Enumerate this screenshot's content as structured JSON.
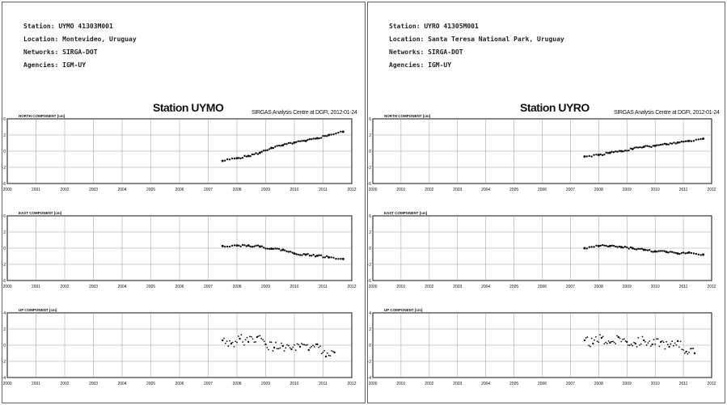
{
  "colors": {
    "grid": "#999999",
    "frame": "#111111",
    "points": "#111111"
  },
  "panels": [
    {
      "meta": [
        "Station: UYMO 41303M001",
        "Location: Montevideo, Uruguay",
        "Networks: SIRGA-DOT",
        "Agencies: IGM-UY"
      ],
      "station_title": "Station UYMO",
      "analysis": "SIRGAS Analysis Centre at DGFI, 2012-01-24"
    },
    {
      "meta": [
        "Station: UYRO 41305M001",
        "Location: Santa Teresa National Park, Uruguay",
        "Networks: SIRGA-DOT",
        "Agencies: IGM-UY"
      ],
      "station_title": "Station UYRO",
      "analysis": "SIRGAS Analysis Centre at DGFI, 2012-01-24"
    }
  ],
  "chart_data": [
    {
      "type": "scatter",
      "station": "UYMO",
      "component": "NORTH COMPONENT [cm]",
      "x_ticks": [
        "2000",
        "2001",
        "2002",
        "2003",
        "2004",
        "2005",
        "2006",
        "2007",
        "2008",
        "2009",
        "2010",
        "2011",
        "2012"
      ],
      "xlim": [
        2000,
        2012
      ],
      "ylim": [
        -6,
        6
      ],
      "yticks": [
        "6",
        "2",
        "0",
        "-2",
        "-6"
      ],
      "grid": true,
      "x": [
        2007.5,
        2008.0,
        2008.4,
        2008.8,
        2009.2,
        2009.6,
        2010.0,
        2010.4,
        2010.8,
        2011.2,
        2011.7
      ],
      "y": [
        -1.8,
        -1.3,
        -0.9,
        -0.3,
        0.6,
        1.1,
        1.6,
        1.9,
        2.4,
        3.0,
        3.6
      ]
    },
    {
      "type": "scatter",
      "station": "UYMO",
      "component": "EAST COMPONENT [cm]",
      "x_ticks": [
        "2000",
        "2001",
        "2002",
        "2003",
        "2004",
        "2005",
        "2006",
        "2007",
        "2008",
        "2009",
        "2010",
        "2011",
        "2012"
      ],
      "xlim": [
        2000,
        2012
      ],
      "ylim": [
        -6,
        6
      ],
      "yticks": [
        "6",
        "2",
        "0",
        "-2",
        "-6"
      ],
      "grid": true,
      "x": [
        2007.5,
        2008.0,
        2008.4,
        2008.8,
        2009.2,
        2009.6,
        2010.0,
        2010.4,
        2010.8,
        2011.2,
        2011.7
      ],
      "y": [
        0.4,
        0.5,
        0.5,
        0.3,
        -0.1,
        -0.3,
        -1.0,
        -1.2,
        -1.4,
        -1.7,
        -2.0
      ]
    },
    {
      "type": "scatter",
      "station": "UYMO",
      "component": "UP COMPONENT [cm]",
      "x_ticks": [
        "2000",
        "2001",
        "2002",
        "2003",
        "2004",
        "2005",
        "2006",
        "2007",
        "2008",
        "2009",
        "2010",
        "2011",
        "2012"
      ],
      "xlim": [
        2000,
        2012
      ],
      "ylim": [
        -4,
        4
      ],
      "yticks": [
        "4",
        "2",
        "0",
        "-2",
        "-4"
      ],
      "grid": true,
      "x": [
        2007.5,
        2007.8,
        2008.1,
        2008.4,
        2008.7,
        2009.0,
        2009.3,
        2009.6,
        2009.9,
        2010.2,
        2010.5,
        2010.8,
        2011.1,
        2011.4
      ],
      "y": [
        0.6,
        0.2,
        0.8,
        0.4,
        1.0,
        0.1,
        -0.3,
        -0.1,
        -0.5,
        -0.2,
        -0.6,
        0.1,
        -1.4,
        -0.9
      ]
    },
    {
      "type": "scatter",
      "station": "UYRO",
      "component": "NORTH COMPONENT [cm]",
      "x_ticks": [
        "2000",
        "2001",
        "2002",
        "2003",
        "2004",
        "2005",
        "2006",
        "2007",
        "2008",
        "2009",
        "2010",
        "2011",
        "2012"
      ],
      "xlim": [
        2000,
        2012
      ],
      "ylim": [
        -6,
        6
      ],
      "yticks": [
        "6",
        "2",
        "0",
        "-2",
        "-6"
      ],
      "grid": true,
      "x": [
        2007.5,
        2008.0,
        2008.4,
        2008.8,
        2009.2,
        2009.6,
        2010.0,
        2010.4,
        2010.8,
        2011.2,
        2011.7
      ],
      "y": [
        -1.0,
        -0.7,
        -0.3,
        0.0,
        0.4,
        0.8,
        1.0,
        1.3,
        1.6,
        1.9,
        2.3
      ]
    },
    {
      "type": "scatter",
      "station": "UYRO",
      "component": "EAST COMPONENT [cm]",
      "x_ticks": [
        "2000",
        "2001",
        "2002",
        "2003",
        "2004",
        "2005",
        "2006",
        "2007",
        "2008",
        "2009",
        "2010",
        "2011",
        "2012"
      ],
      "xlim": [
        2000,
        2012
      ],
      "ylim": [
        -6,
        6
      ],
      "yticks": [
        "6",
        "2",
        "0",
        "-2",
        "-6"
      ],
      "grid": true,
      "x": [
        2007.5,
        2008.0,
        2008.4,
        2008.8,
        2009.2,
        2009.6,
        2010.0,
        2010.4,
        2010.8,
        2011.2,
        2011.7
      ],
      "y": [
        0.0,
        0.4,
        0.4,
        0.2,
        0.0,
        -0.3,
        -0.6,
        -0.7,
        -1.0,
        -0.8,
        -1.2
      ]
    },
    {
      "type": "scatter",
      "station": "UYRO",
      "component": "UP COMPONENT [cm]",
      "x_ticks": [
        "2000",
        "2001",
        "2002",
        "2003",
        "2004",
        "2005",
        "2006",
        "2007",
        "2008",
        "2009",
        "2010",
        "2011",
        "2012"
      ],
      "xlim": [
        2000,
        2012
      ],
      "ylim": [
        -4,
        4
      ],
      "yticks": [
        "4",
        "2",
        "0",
        "-2",
        "-4"
      ],
      "grid": true,
      "x": [
        2007.5,
        2007.8,
        2008.1,
        2008.4,
        2008.7,
        2009.0,
        2009.3,
        2009.6,
        2009.9,
        2010.2,
        2010.5,
        2010.8,
        2011.1,
        2011.4
      ],
      "y": [
        0.6,
        0.2,
        0.9,
        0.3,
        1.0,
        0.4,
        0.2,
        0.6,
        0.1,
        0.4,
        -0.2,
        0.5,
        -0.8,
        -1.0
      ]
    }
  ]
}
